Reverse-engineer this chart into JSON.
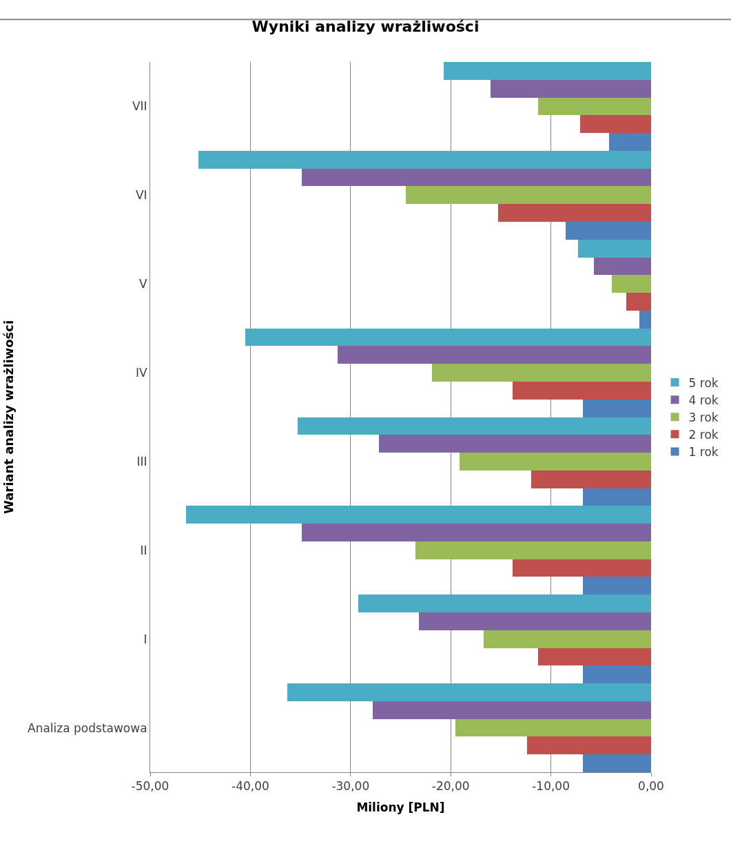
{
  "chart_data": {
    "type": "bar",
    "orientation": "horizontal",
    "title": "Wyniki analizy wrażliwości",
    "xlabel": "Miliony [PLN]",
    "ylabel": "Wariant analizy wrażliwości",
    "categories": [
      "VII",
      "VI",
      "V",
      "IV",
      "III",
      "II",
      "I",
      "Analiza podstawowa"
    ],
    "series": [
      {
        "name": "5 rok",
        "color": "#4bacc6",
        "values": [
          -20.7,
          -45.2,
          -7.3,
          -40.5,
          -35.3,
          -46.4,
          -29.2,
          -36.3
        ]
      },
      {
        "name": "4 rok",
        "color": "#8064a2",
        "values": [
          -16.0,
          -34.9,
          -5.7,
          -31.3,
          -27.2,
          -34.9,
          -23.2,
          -27.8
        ]
      },
      {
        "name": "3 rok",
        "color": "#9bbb59",
        "values": [
          -11.3,
          -24.5,
          -3.9,
          -21.9,
          -19.1,
          -23.5,
          -16.7,
          -19.5
        ]
      },
      {
        "name": "2 rok",
        "color": "#c0504d",
        "values": [
          -7.1,
          -15.3,
          -2.5,
          -13.8,
          -12.0,
          -13.8,
          -11.3,
          -12.4
        ]
      },
      {
        "name": "1 rok",
        "color": "#4f81bd",
        "values": [
          -4.2,
          -8.5,
          -1.2,
          -6.8,
          -6.8,
          -6.8,
          -6.8,
          -6.8
        ]
      }
    ],
    "xlim": [
      -50,
      0
    ],
    "xticks": [
      {
        "value": -50,
        "label": "-50,00"
      },
      {
        "value": -40,
        "label": "-40,00"
      },
      {
        "value": -30,
        "label": "-30,00"
      },
      {
        "value": -20,
        "label": "-20,00"
      },
      {
        "value": -10,
        "label": "-10,00"
      },
      {
        "value": 0,
        "label": "0,00"
      }
    ],
    "grid": "x",
    "legend": "right"
  }
}
